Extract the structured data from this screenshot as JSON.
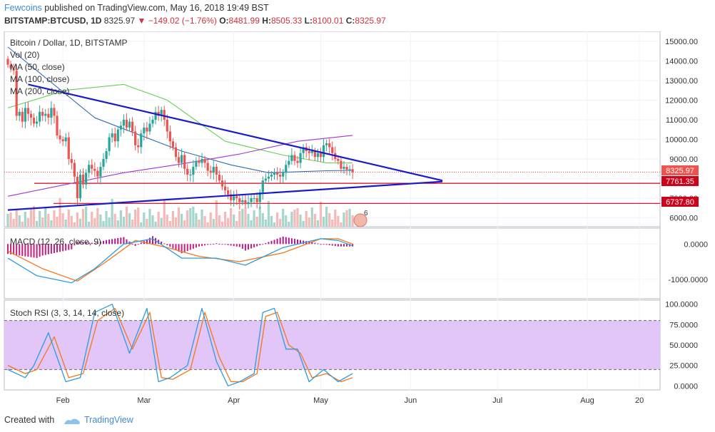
{
  "header": {
    "user": "Fewcoins",
    "published_text": " published on TradingView.com, May 16, 2018 19:49 BST",
    "symbol": "BITSTAMP:BTCUSD, 1D",
    "last": "8325.97",
    "change": "−149.02 (−1.76%)",
    "o_label": "O:",
    "o_value": "8481.99",
    "h_label": "H:",
    "h_value": "8505.33",
    "l_label": "L:",
    "l_value": "8100.01",
    "c_label": "C:",
    "c_value": "8325.97"
  },
  "legend": {
    "title": "Bitcoin / Dollar, 1D, BITSTAMP",
    "vol": "Vol (20)",
    "ma50": "MA (50, close)",
    "ma100": "MA (100, close)",
    "ma200": "MA (200, close)",
    "macd": "MACD (12, 26, close, 9)",
    "stoch": "Stoch RSI (3, 3, 14, 14, close)"
  },
  "price_badges": {
    "current": "8325.97",
    "support1": "7761.35",
    "support2": "6737.80"
  },
  "badge_value": "6",
  "footer": {
    "created": "Created with",
    "brand": "TradingView"
  },
  "colors": {
    "up": "#26a69a",
    "down": "#ef5350",
    "trendline": "#1a1acd",
    "support": "#d0021b",
    "ma50": "#2b6fb4",
    "ma100": "#5fd34f",
    "ma200": "#a335d6",
    "macd": "#2d9cdb",
    "signal": "#f5761a",
    "stoch_band": "#e1c6f7"
  },
  "chart_data": [
    {
      "type": "candlestick",
      "title": "Bitcoin / Dollar, 1D, BITSTAMP",
      "x_tick_labels": [
        "Feb",
        "Mar",
        "Apr",
        "May",
        "Jun",
        "Jul",
        "Aug",
        "20"
      ],
      "y_tick_labels": [
        "15000.00",
        "14000.00",
        "13000.00",
        "12000.00",
        "11000.00",
        "10000.00",
        "9000.00",
        "8000.00",
        "7000.00",
        "6000.00"
      ],
      "y_ticks": [
        15000,
        14000,
        13000,
        12000,
        11000,
        10000,
        9000,
        8000,
        7000,
        6000
      ],
      "ylim": [
        5550,
        15500
      ],
      "start_date": "2018-01-13",
      "close": [
        13800,
        13600,
        13500,
        11200,
        11400,
        10900,
        11600,
        11300,
        11100,
        10800,
        10900,
        11400,
        11200,
        11300,
        11100,
        11600,
        11200,
        10200,
        10000,
        9900,
        10100,
        9000,
        8800,
        8100,
        7000,
        8200,
        7700,
        8300,
        8700,
        8500,
        8400,
        8100,
        8600,
        9000,
        9400,
        10100,
        10300,
        9900,
        10500,
        10700,
        11000,
        10600,
        10900,
        10400,
        9700,
        9600,
        10300,
        10600,
        10400,
        10800,
        11000,
        11400,
        11200,
        11500,
        11000,
        10400,
        9900,
        9600,
        9100,
        8800,
        9200,
        8500,
        8200,
        8200,
        8600,
        8900,
        8800,
        9000,
        8800,
        8400,
        8300,
        8600,
        8200,
        7900,
        7600,
        7400,
        7200,
        6900,
        7100,
        7000,
        6800,
        6900,
        6700,
        6800,
        7000,
        7000,
        6800,
        7300,
        7900,
        8000,
        8100,
        8200,
        8300,
        8200,
        8100,
        8300,
        8700,
        8900,
        9200,
        8900,
        8800,
        9300,
        9600,
        9400,
        9300,
        9400,
        9100,
        9300,
        9100,
        9700,
        9800,
        9600,
        9300,
        9000,
        8900,
        8500,
        8600,
        8450,
        8480,
        8326
      ],
      "ma50_approx_anchor": [
        [
          0,
          14700
        ],
        [
          30,
          11100
        ],
        [
          60,
          9400
        ],
        [
          77,
          8700
        ],
        [
          90,
          8300
        ],
        [
          110,
          8400
        ],
        [
          119,
          8420
        ]
      ],
      "ma100_approx": [
        [
          0,
          11600
        ],
        [
          20,
          12500
        ],
        [
          40,
          12800
        ],
        [
          55,
          12000
        ],
        [
          75,
          9900
        ],
        [
          95,
          9200
        ],
        [
          110,
          8800
        ],
        [
          119,
          8800
        ]
      ],
      "ma200_approx": [
        [
          0,
          7100
        ],
        [
          40,
          8300
        ],
        [
          60,
          8750
        ],
        [
          80,
          9250
        ],
        [
          100,
          9900
        ],
        [
          119,
          10200
        ]
      ],
      "trendline_upper": [
        [
          7,
          12800
        ],
        [
          150,
          7900
        ]
      ],
      "trendline_lower": [
        [
          0,
          6400
        ],
        [
          150,
          7850
        ]
      ],
      "support_levels": [
        7761.35,
        6737.8
      ],
      "current_price_line": 8325.97
    },
    {
      "type": "line",
      "title": "MACD (12, 26, close, 9)",
      "y_tick_labels": [
        "0.0000",
        "-1000.0000"
      ],
      "y_ticks": [
        0,
        -1000
      ],
      "ylim": [
        -1550,
        450
      ],
      "macd_approx": [
        [
          0,
          -400
        ],
        [
          10,
          -900
        ],
        [
          22,
          -1100
        ],
        [
          30,
          -700
        ],
        [
          40,
          0
        ],
        [
          50,
          150
        ],
        [
          60,
          -400
        ],
        [
          72,
          -400
        ],
        [
          82,
          -600
        ],
        [
          95,
          -100
        ],
        [
          108,
          150
        ],
        [
          114,
          100
        ],
        [
          119,
          -50
        ]
      ],
      "signal_approx": [
        [
          0,
          -200
        ],
        [
          12,
          -700
        ],
        [
          24,
          -1050
        ],
        [
          34,
          -500
        ],
        [
          44,
          100
        ],
        [
          55,
          -100
        ],
        [
          66,
          -350
        ],
        [
          80,
          -500
        ],
        [
          95,
          -250
        ],
        [
          108,
          150
        ],
        [
          114,
          150
        ],
        [
          119,
          0
        ]
      ]
    },
    {
      "type": "line",
      "title": "Stoch RSI (3, 3, 14, 14, close)",
      "y_tick_labels": [
        "100.0000",
        "75.0000",
        "50.0000",
        "25.0000",
        "0.0000"
      ],
      "y_ticks": [
        100,
        75,
        50,
        25,
        0
      ],
      "ylim": [
        -5,
        105
      ],
      "band": [
        20,
        80
      ],
      "k_approx": [
        [
          0,
          20
        ],
        [
          6,
          10
        ],
        [
          9,
          25
        ],
        [
          14,
          65
        ],
        [
          20,
          5
        ],
        [
          25,
          10
        ],
        [
          30,
          90
        ],
        [
          36,
          100
        ],
        [
          42,
          40
        ],
        [
          48,
          95
        ],
        [
          52,
          5
        ],
        [
          56,
          10
        ],
        [
          62,
          25
        ],
        [
          67,
          95
        ],
        [
          72,
          30
        ],
        [
          76,
          0
        ],
        [
          80,
          5
        ],
        [
          85,
          15
        ],
        [
          88,
          90
        ],
        [
          92,
          95
        ],
        [
          96,
          45
        ],
        [
          100,
          45
        ],
        [
          104,
          5
        ],
        [
          109,
          20
        ],
        [
          114,
          5
        ],
        [
          119,
          15
        ]
      ],
      "d_approx": [
        [
          0,
          25
        ],
        [
          6,
          15
        ],
        [
          10,
          20
        ],
        [
          16,
          60
        ],
        [
          21,
          10
        ],
        [
          26,
          15
        ],
        [
          31,
          80
        ],
        [
          37,
          95
        ],
        [
          43,
          45
        ],
        [
          49,
          90
        ],
        [
          53,
          10
        ],
        [
          57,
          8
        ],
        [
          63,
          20
        ],
        [
          68,
          90
        ],
        [
          73,
          35
        ],
        [
          77,
          5
        ],
        [
          81,
          5
        ],
        [
          86,
          15
        ],
        [
          89,
          85
        ],
        [
          93,
          90
        ],
        [
          97,
          50
        ],
        [
          101,
          40
        ],
        [
          105,
          10
        ],
        [
          110,
          15
        ],
        [
          115,
          5
        ],
        [
          119,
          10
        ]
      ]
    }
  ]
}
